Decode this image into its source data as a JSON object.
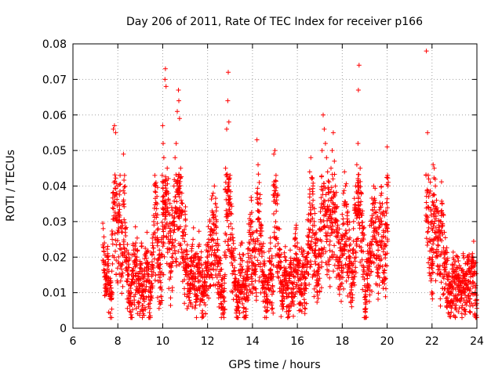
{
  "chart_data": {
    "type": "scatter",
    "title": "Day 206 of 2011, Rate Of TEC Index for receiver p166",
    "xlabel": "GPS time / hours",
    "ylabel": "ROTI / TECUs",
    "xlim": [
      6,
      24
    ],
    "ylim": [
      0,
      0.08
    ],
    "xticks": [
      6,
      8,
      10,
      12,
      14,
      16,
      18,
      20,
      22,
      24
    ],
    "yticks": [
      0,
      0.01,
      0.02,
      0.03,
      0.04,
      0.05,
      0.06,
      0.07,
      0.08
    ],
    "xtick_labels": [
      "6",
      "8",
      "10",
      "12",
      "14",
      "16",
      "18",
      "20",
      "22",
      "24"
    ],
    "ytick_labels": [
      "0",
      "0.01",
      "0.02",
      "0.03",
      "0.04",
      "0.05",
      "0.06",
      "0.07",
      "0.08"
    ],
    "grid": true,
    "marker": "+",
    "color": "#ff0000",
    "series": [
      {
        "name": "ROTI",
        "points": [
          [
            7.35,
            0.028
          ],
          [
            7.4,
            0.024
          ],
          [
            7.45,
            0.018
          ],
          [
            7.5,
            0.014
          ],
          [
            7.55,
            0.021
          ],
          [
            7.6,
            0.016
          ],
          [
            7.65,
            0.012
          ],
          [
            7.7,
            0.009
          ],
          [
            7.75,
            0.025
          ],
          [
            7.8,
            0.056
          ],
          [
            7.85,
            0.057
          ],
          [
            7.9,
            0.055
          ],
          [
            7.95,
            0.038
          ],
          [
            8.0,
            0.04
          ],
          [
            8.05,
            0.035
          ],
          [
            8.1,
            0.043
          ],
          [
            8.15,
            0.03
          ],
          [
            8.2,
            0.027
          ],
          [
            8.25,
            0.049
          ],
          [
            8.3,
            0.038
          ],
          [
            8.35,
            0.026
          ],
          [
            8.4,
            0.022
          ],
          [
            8.45,
            0.019
          ],
          [
            8.5,
            0.015
          ],
          [
            8.55,
            0.012
          ],
          [
            8.6,
            0.01
          ],
          [
            8.65,
            0.016
          ],
          [
            8.7,
            0.022
          ],
          [
            8.75,
            0.018
          ],
          [
            8.8,
            0.024
          ],
          [
            8.85,
            0.02
          ],
          [
            8.9,
            0.014
          ],
          [
            8.95,
            0.011
          ],
          [
            9.0,
            0.017
          ],
          [
            9.05,
            0.023
          ],
          [
            9.1,
            0.012
          ],
          [
            9.15,
            0.009
          ],
          [
            9.2,
            0.015
          ],
          [
            9.25,
            0.021
          ],
          [
            9.3,
            0.027
          ],
          [
            9.35,
            0.018
          ],
          [
            9.4,
            0.013
          ],
          [
            9.45,
            0.01
          ],
          [
            9.5,
            0.016
          ],
          [
            9.55,
            0.024
          ],
          [
            9.6,
            0.03
          ],
          [
            9.65,
            0.043
          ],
          [
            9.7,
            0.041
          ],
          [
            9.75,
            0.035
          ],
          [
            9.8,
            0.028
          ],
          [
            9.85,
            0.022
          ],
          [
            9.9,
            0.018
          ],
          [
            9.95,
            0.025
          ],
          [
            10.0,
            0.057
          ],
          [
            10.02,
            0.052
          ],
          [
            10.05,
            0.048
          ],
          [
            10.1,
            0.07
          ],
          [
            10.12,
            0.073
          ],
          [
            10.15,
            0.068
          ],
          [
            10.2,
            0.045
          ],
          [
            10.25,
            0.038
          ],
          [
            10.3,
            0.032
          ],
          [
            10.35,
            0.026
          ],
          [
            10.4,
            0.034
          ],
          [
            10.45,
            0.029
          ],
          [
            10.5,
            0.04
          ],
          [
            10.55,
            0.048
          ],
          [
            10.6,
            0.052
          ],
          [
            10.65,
            0.061
          ],
          [
            10.7,
            0.067
          ],
          [
            10.72,
            0.064
          ],
          [
            10.75,
            0.059
          ],
          [
            10.8,
            0.045
          ],
          [
            10.85,
            0.038
          ],
          [
            10.9,
            0.033
          ],
          [
            10.95,
            0.027
          ],
          [
            11.0,
            0.032
          ],
          [
            11.05,
            0.022
          ],
          [
            11.1,
            0.018
          ],
          [
            11.15,
            0.015
          ],
          [
            11.2,
            0.012
          ],
          [
            11.25,
            0.016
          ],
          [
            11.3,
            0.02
          ],
          [
            11.35,
            0.025
          ],
          [
            11.4,
            0.019
          ],
          [
            11.45,
            0.014
          ],
          [
            11.5,
            0.011
          ],
          [
            11.55,
            0.017
          ],
          [
            11.6,
            0.023
          ],
          [
            11.65,
            0.019
          ],
          [
            11.7,
            0.015
          ],
          [
            11.75,
            0.012
          ],
          [
            11.8,
            0.009
          ],
          [
            11.85,
            0.013
          ],
          [
            11.9,
            0.018
          ],
          [
            11.95,
            0.022
          ],
          [
            12.0,
            0.02
          ],
          [
            12.05,
            0.025
          ],
          [
            12.1,
            0.03
          ],
          [
            12.15,
            0.028
          ],
          [
            12.2,
            0.033
          ],
          [
            12.25,
            0.038
          ],
          [
            12.3,
            0.04
          ],
          [
            12.35,
            0.035
          ],
          [
            12.4,
            0.03
          ],
          [
            12.45,
            0.025
          ],
          [
            12.5,
            0.02
          ],
          [
            12.55,
            0.016
          ],
          [
            12.6,
            0.012
          ],
          [
            12.65,
            0.009
          ],
          [
            12.7,
            0.006
          ],
          [
            12.75,
            0.014
          ],
          [
            12.8,
            0.045
          ],
          [
            12.85,
            0.056
          ],
          [
            12.9,
            0.064
          ],
          [
            12.92,
            0.072
          ],
          [
            12.95,
            0.058
          ],
          [
            13.0,
            0.043
          ],
          [
            13.05,
            0.035
          ],
          [
            13.1,
            0.028
          ],
          [
            13.15,
            0.022
          ],
          [
            13.2,
            0.017
          ],
          [
            13.25,
            0.013
          ],
          [
            13.3,
            0.009
          ],
          [
            13.35,
            0.006
          ],
          [
            13.4,
            0.012
          ],
          [
            13.45,
            0.018
          ],
          [
            13.5,
            0.024
          ],
          [
            13.55,
            0.019
          ],
          [
            13.6,
            0.014
          ],
          [
            13.65,
            0.011
          ],
          [
            13.7,
            0.008
          ],
          [
            13.75,
            0.015
          ],
          [
            13.8,
            0.021
          ],
          [
            13.85,
            0.027
          ],
          [
            13.9,
            0.032
          ],
          [
            13.95,
            0.036
          ],
          [
            14.0,
            0.03
          ],
          [
            14.05,
            0.025
          ],
          [
            14.1,
            0.02
          ],
          [
            14.15,
            0.016
          ],
          [
            14.2,
            0.053
          ],
          [
            14.25,
            0.046
          ],
          [
            14.3,
            0.041
          ],
          [
            14.35,
            0.035
          ],
          [
            14.4,
            0.029
          ],
          [
            14.45,
            0.023
          ],
          [
            14.5,
            0.018
          ],
          [
            14.55,
            0.014
          ],
          [
            14.6,
            0.011
          ],
          [
            14.65,
            0.008
          ],
          [
            14.7,
            0.013
          ],
          [
            14.75,
            0.019
          ],
          [
            14.8,
            0.024
          ],
          [
            14.85,
            0.018
          ],
          [
            14.9,
            0.012
          ],
          [
            14.95,
            0.049
          ],
          [
            15.0,
            0.05
          ],
          [
            15.05,
            0.043
          ],
          [
            15.1,
            0.035
          ],
          [
            15.15,
            0.028
          ],
          [
            15.2,
            0.022
          ],
          [
            15.25,
            0.017
          ],
          [
            15.3,
            0.013
          ],
          [
            15.35,
            0.01
          ],
          [
            15.4,
            0.015
          ],
          [
            15.45,
            0.02
          ],
          [
            15.5,
            0.016
          ],
          [
            15.55,
            0.012
          ],
          [
            15.6,
            0.009
          ],
          [
            15.65,
            0.014
          ],
          [
            15.7,
            0.019
          ],
          [
            15.75,
            0.015
          ],
          [
            15.8,
            0.011
          ],
          [
            15.85,
            0.017
          ],
          [
            15.9,
            0.023
          ],
          [
            15.95,
            0.029
          ],
          [
            16.0,
            0.024
          ],
          [
            16.05,
            0.019
          ],
          [
            16.1,
            0.014
          ],
          [
            16.15,
            0.01
          ],
          [
            16.2,
            0.016
          ],
          [
            16.25,
            0.022
          ],
          [
            16.3,
            0.018
          ],
          [
            16.35,
            0.014
          ],
          [
            16.4,
            0.02
          ],
          [
            16.45,
            0.026
          ],
          [
            16.5,
            0.032
          ],
          [
            16.55,
            0.044
          ],
          [
            16.6,
            0.048
          ],
          [
            16.65,
            0.042
          ],
          [
            16.7,
            0.036
          ],
          [
            16.75,
            0.03
          ],
          [
            16.8,
            0.025
          ],
          [
            16.85,
            0.02
          ],
          [
            16.9,
            0.016
          ],
          [
            16.95,
            0.022
          ],
          [
            17.0,
            0.028
          ],
          [
            17.05,
            0.034
          ],
          [
            17.1,
            0.05
          ],
          [
            17.15,
            0.06
          ],
          [
            17.2,
            0.056
          ],
          [
            17.25,
            0.052
          ],
          [
            17.3,
            0.048
          ],
          [
            17.35,
            0.044
          ],
          [
            17.4,
            0.038
          ],
          [
            17.45,
            0.032
          ],
          [
            17.5,
            0.045
          ],
          [
            17.55,
            0.05
          ],
          [
            17.6,
            0.055
          ],
          [
            17.65,
            0.047
          ],
          [
            17.7,
            0.04
          ],
          [
            17.75,
            0.034
          ],
          [
            17.8,
            0.029
          ],
          [
            17.85,
            0.024
          ],
          [
            17.9,
            0.02
          ],
          [
            17.95,
            0.026
          ],
          [
            18.0,
            0.032
          ],
          [
            18.05,
            0.038
          ],
          [
            18.1,
            0.044
          ],
          [
            18.15,
            0.04
          ],
          [
            18.2,
            0.035
          ],
          [
            18.25,
            0.03
          ],
          [
            18.3,
            0.025
          ],
          [
            18.35,
            0.02
          ],
          [
            18.4,
            0.016
          ],
          [
            18.45,
            0.022
          ],
          [
            18.5,
            0.028
          ],
          [
            18.55,
            0.034
          ],
          [
            18.6,
            0.04
          ],
          [
            18.65,
            0.046
          ],
          [
            18.7,
            0.052
          ],
          [
            18.72,
            0.067
          ],
          [
            18.75,
            0.074
          ],
          [
            18.8,
            0.045
          ],
          [
            18.85,
            0.038
          ],
          [
            18.9,
            0.033
          ],
          [
            18.95,
            0.028
          ],
          [
            19.0,
            0.012
          ],
          [
            19.05,
            0.009
          ],
          [
            19.1,
            0.015
          ],
          [
            19.15,
            0.021
          ],
          [
            19.2,
            0.019
          ],
          [
            19.25,
            0.024
          ],
          [
            19.3,
            0.029
          ],
          [
            19.35,
            0.035
          ],
          [
            19.4,
            0.04
          ],
          [
            19.45,
            0.036
          ],
          [
            19.5,
            0.031
          ],
          [
            19.55,
            0.027
          ],
          [
            19.6,
            0.022
          ],
          [
            19.65,
            0.03
          ],
          [
            19.7,
            0.034
          ],
          [
            19.75,
            0.038
          ],
          [
            19.8,
            0.032
          ],
          [
            19.85,
            0.027
          ],
          [
            19.9,
            0.023
          ],
          [
            19.95,
            0.029
          ],
          [
            20.0,
            0.051
          ],
          [
            20.02,
            0.043
          ],
          [
            21.75,
            0.078
          ],
          [
            21.8,
            0.055
          ],
          [
            21.85,
            0.042
          ],
          [
            21.9,
            0.038
          ],
          [
            21.95,
            0.033
          ],
          [
            22.0,
            0.028
          ],
          [
            22.02,
            0.02
          ],
          [
            22.05,
            0.046
          ],
          [
            22.1,
            0.045
          ],
          [
            22.15,
            0.04
          ],
          [
            22.2,
            0.036
          ],
          [
            22.25,
            0.033
          ],
          [
            22.3,
            0.029
          ],
          [
            22.35,
            0.026
          ],
          [
            22.4,
            0.03
          ],
          [
            22.45,
            0.035
          ],
          [
            22.5,
            0.032
          ],
          [
            22.55,
            0.027
          ],
          [
            22.6,
            0.022
          ],
          [
            22.65,
            0.018
          ],
          [
            22.7,
            0.015
          ],
          [
            22.75,
            0.012
          ],
          [
            22.8,
            0.01
          ],
          [
            22.85,
            0.013
          ],
          [
            22.9,
            0.018
          ],
          [
            22.95,
            0.016
          ],
          [
            23.0,
            0.013
          ],
          [
            23.05,
            0.011
          ],
          [
            23.1,
            0.014
          ],
          [
            23.15,
            0.017
          ],
          [
            23.2,
            0.015
          ],
          [
            23.25,
            0.012
          ],
          [
            23.3,
            0.01
          ],
          [
            23.35,
            0.013
          ],
          [
            23.4,
            0.016
          ],
          [
            23.45,
            0.014
          ],
          [
            23.5,
            0.011
          ],
          [
            23.55,
            0.015
          ],
          [
            23.6,
            0.018
          ],
          [
            23.65,
            0.016
          ],
          [
            23.7,
            0.013
          ],
          [
            23.75,
            0.017
          ],
          [
            23.8,
            0.021
          ],
          [
            23.85,
            0.019
          ],
          [
            23.9,
            0.016
          ],
          [
            23.95,
            0.012
          ],
          [
            24.0,
            0.007
          ]
        ]
      }
    ]
  }
}
